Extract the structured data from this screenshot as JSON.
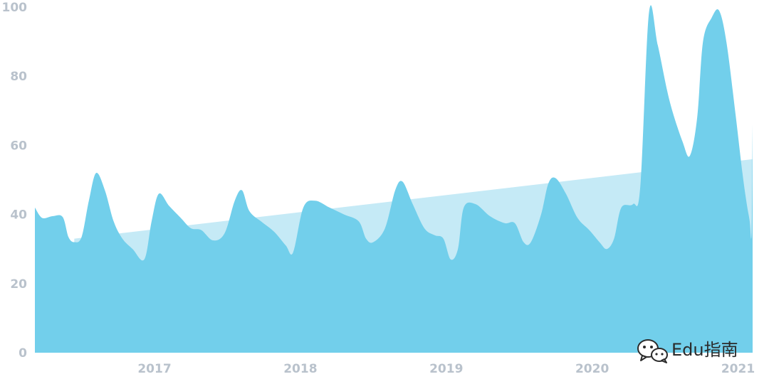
{
  "chart_data": {
    "type": "area",
    "title": "",
    "xlabel": "",
    "ylabel": "",
    "ylim": [
      0,
      100
    ],
    "xlim": [
      2016.18,
      2021.1
    ],
    "y_ticks": [
      "0",
      "20",
      "40",
      "60",
      "80",
      "100"
    ],
    "x_ticks": [
      "2017",
      "2018",
      "2019",
      "2020",
      "2021"
    ],
    "grid": false,
    "legend": "none",
    "colors": {
      "series": "#72cfeb",
      "trend": "#c5eaf6",
      "tick": "#b9c2cc"
    },
    "series": [
      {
        "points": [
          [
            2016.18,
            42
          ],
          [
            2016.23,
            39
          ],
          [
            2016.3,
            39.5
          ],
          [
            2016.37,
            39.3
          ],
          [
            2016.41,
            33.5
          ],
          [
            2016.45,
            32
          ],
          [
            2016.5,
            33.5
          ],
          [
            2016.55,
            44
          ],
          [
            2016.6,
            52
          ],
          [
            2016.66,
            47
          ],
          [
            2016.72,
            38
          ],
          [
            2016.78,
            33
          ],
          [
            2016.85,
            30
          ],
          [
            2016.93,
            27
          ],
          [
            2016.98,
            38
          ],
          [
            2017.03,
            46
          ],
          [
            2017.1,
            42.5
          ],
          [
            2017.18,
            39
          ],
          [
            2017.25,
            36
          ],
          [
            2017.32,
            35.5
          ],
          [
            2017.4,
            32.5
          ],
          [
            2017.48,
            34.5
          ],
          [
            2017.55,
            44
          ],
          [
            2017.6,
            47
          ],
          [
            2017.65,
            41
          ],
          [
            2017.73,
            38
          ],
          [
            2017.82,
            35
          ],
          [
            2017.9,
            31
          ],
          [
            2017.95,
            29
          ],
          [
            2018.02,
            42
          ],
          [
            2018.1,
            44
          ],
          [
            2018.2,
            42
          ],
          [
            2018.3,
            40
          ],
          [
            2018.4,
            38
          ],
          [
            2018.45,
            33
          ],
          [
            2018.5,
            32
          ],
          [
            2018.58,
            36
          ],
          [
            2018.65,
            47
          ],
          [
            2018.7,
            49.5
          ],
          [
            2018.77,
            43
          ],
          [
            2018.85,
            36
          ],
          [
            2018.92,
            34
          ],
          [
            2018.98,
            33
          ],
          [
            2019.03,
            27
          ],
          [
            2019.08,
            30
          ],
          [
            2019.12,
            42
          ],
          [
            2019.2,
            43
          ],
          [
            2019.3,
            39.5
          ],
          [
            2019.4,
            37.5
          ],
          [
            2019.47,
            37.5
          ],
          [
            2019.53,
            32
          ],
          [
            2019.58,
            32
          ],
          [
            2019.65,
            40
          ],
          [
            2019.7,
            49
          ],
          [
            2019.75,
            50.5
          ],
          [
            2019.82,
            46
          ],
          [
            2019.9,
            39
          ],
          [
            2019.98,
            35.5
          ],
          [
            2020.05,
            32
          ],
          [
            2020.1,
            30
          ],
          [
            2020.15,
            33
          ],
          [
            2020.2,
            42
          ],
          [
            2020.28,
            43
          ],
          [
            2020.33,
            48
          ],
          [
            2020.39,
            98.5
          ],
          [
            2020.45,
            89
          ],
          [
            2020.53,
            73
          ],
          [
            2020.62,
            61
          ],
          [
            2020.67,
            57
          ],
          [
            2020.72,
            68
          ],
          [
            2020.76,
            90
          ],
          [
            2020.82,
            97
          ],
          [
            2020.87,
            99
          ],
          [
            2020.92,
            90
          ],
          [
            2020.98,
            70
          ],
          [
            2021.03,
            52
          ],
          [
            2021.06,
            43
          ],
          [
            2021.08,
            38
          ],
          [
            2021.09,
            33
          ],
          [
            2021.095,
            40
          ],
          [
            2021.1,
            66
          ]
        ]
      }
    ],
    "trend": {
      "start": [
        2016.45,
        33
      ],
      "end": [
        2021.1,
        56
      ]
    }
  },
  "watermark": {
    "icon": "wechat-icon",
    "text": "Edu指南"
  }
}
